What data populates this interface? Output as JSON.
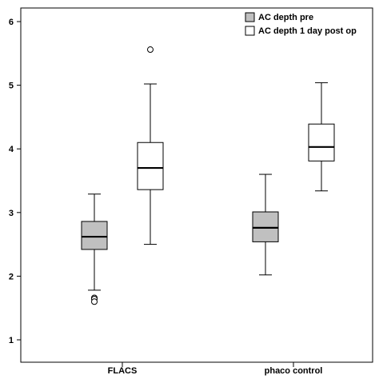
{
  "chart_data": {
    "type": "boxplot",
    "categories": [
      "FLACS",
      "phaco control"
    ],
    "ylim": [
      0.8,
      6.25
    ],
    "yticks": [
      1,
      2,
      3,
      4,
      5,
      6
    ],
    "grid": false,
    "legend_position": "top-right",
    "series": [
      {
        "name": "AC depth pre",
        "color": "#c0c0c0",
        "boxes": [
          {
            "category": "FLACS",
            "min": 1.78,
            "q1": 2.42,
            "median": 2.62,
            "q3": 2.86,
            "max": 3.29,
            "outliers": [
              1.66,
              1.64,
              1.6
            ]
          },
          {
            "category": "phaco control",
            "min": 2.02,
            "q1": 2.54,
            "median": 2.76,
            "q3": 3.01,
            "max": 3.6,
            "outliers": []
          }
        ]
      },
      {
        "name": "AC depth 1 day post op",
        "color": "#ffffff",
        "boxes": [
          {
            "category": "FLACS",
            "min": 2.5,
            "q1": 3.36,
            "median": 3.7,
            "q3": 4.1,
            "max": 5.02,
            "outliers": [
              5.56
            ]
          },
          {
            "category": "phaco control",
            "min": 3.34,
            "q1": 3.81,
            "median": 4.03,
            "q3": 4.39,
            "max": 5.04,
            "outliers": []
          }
        ]
      }
    ]
  }
}
